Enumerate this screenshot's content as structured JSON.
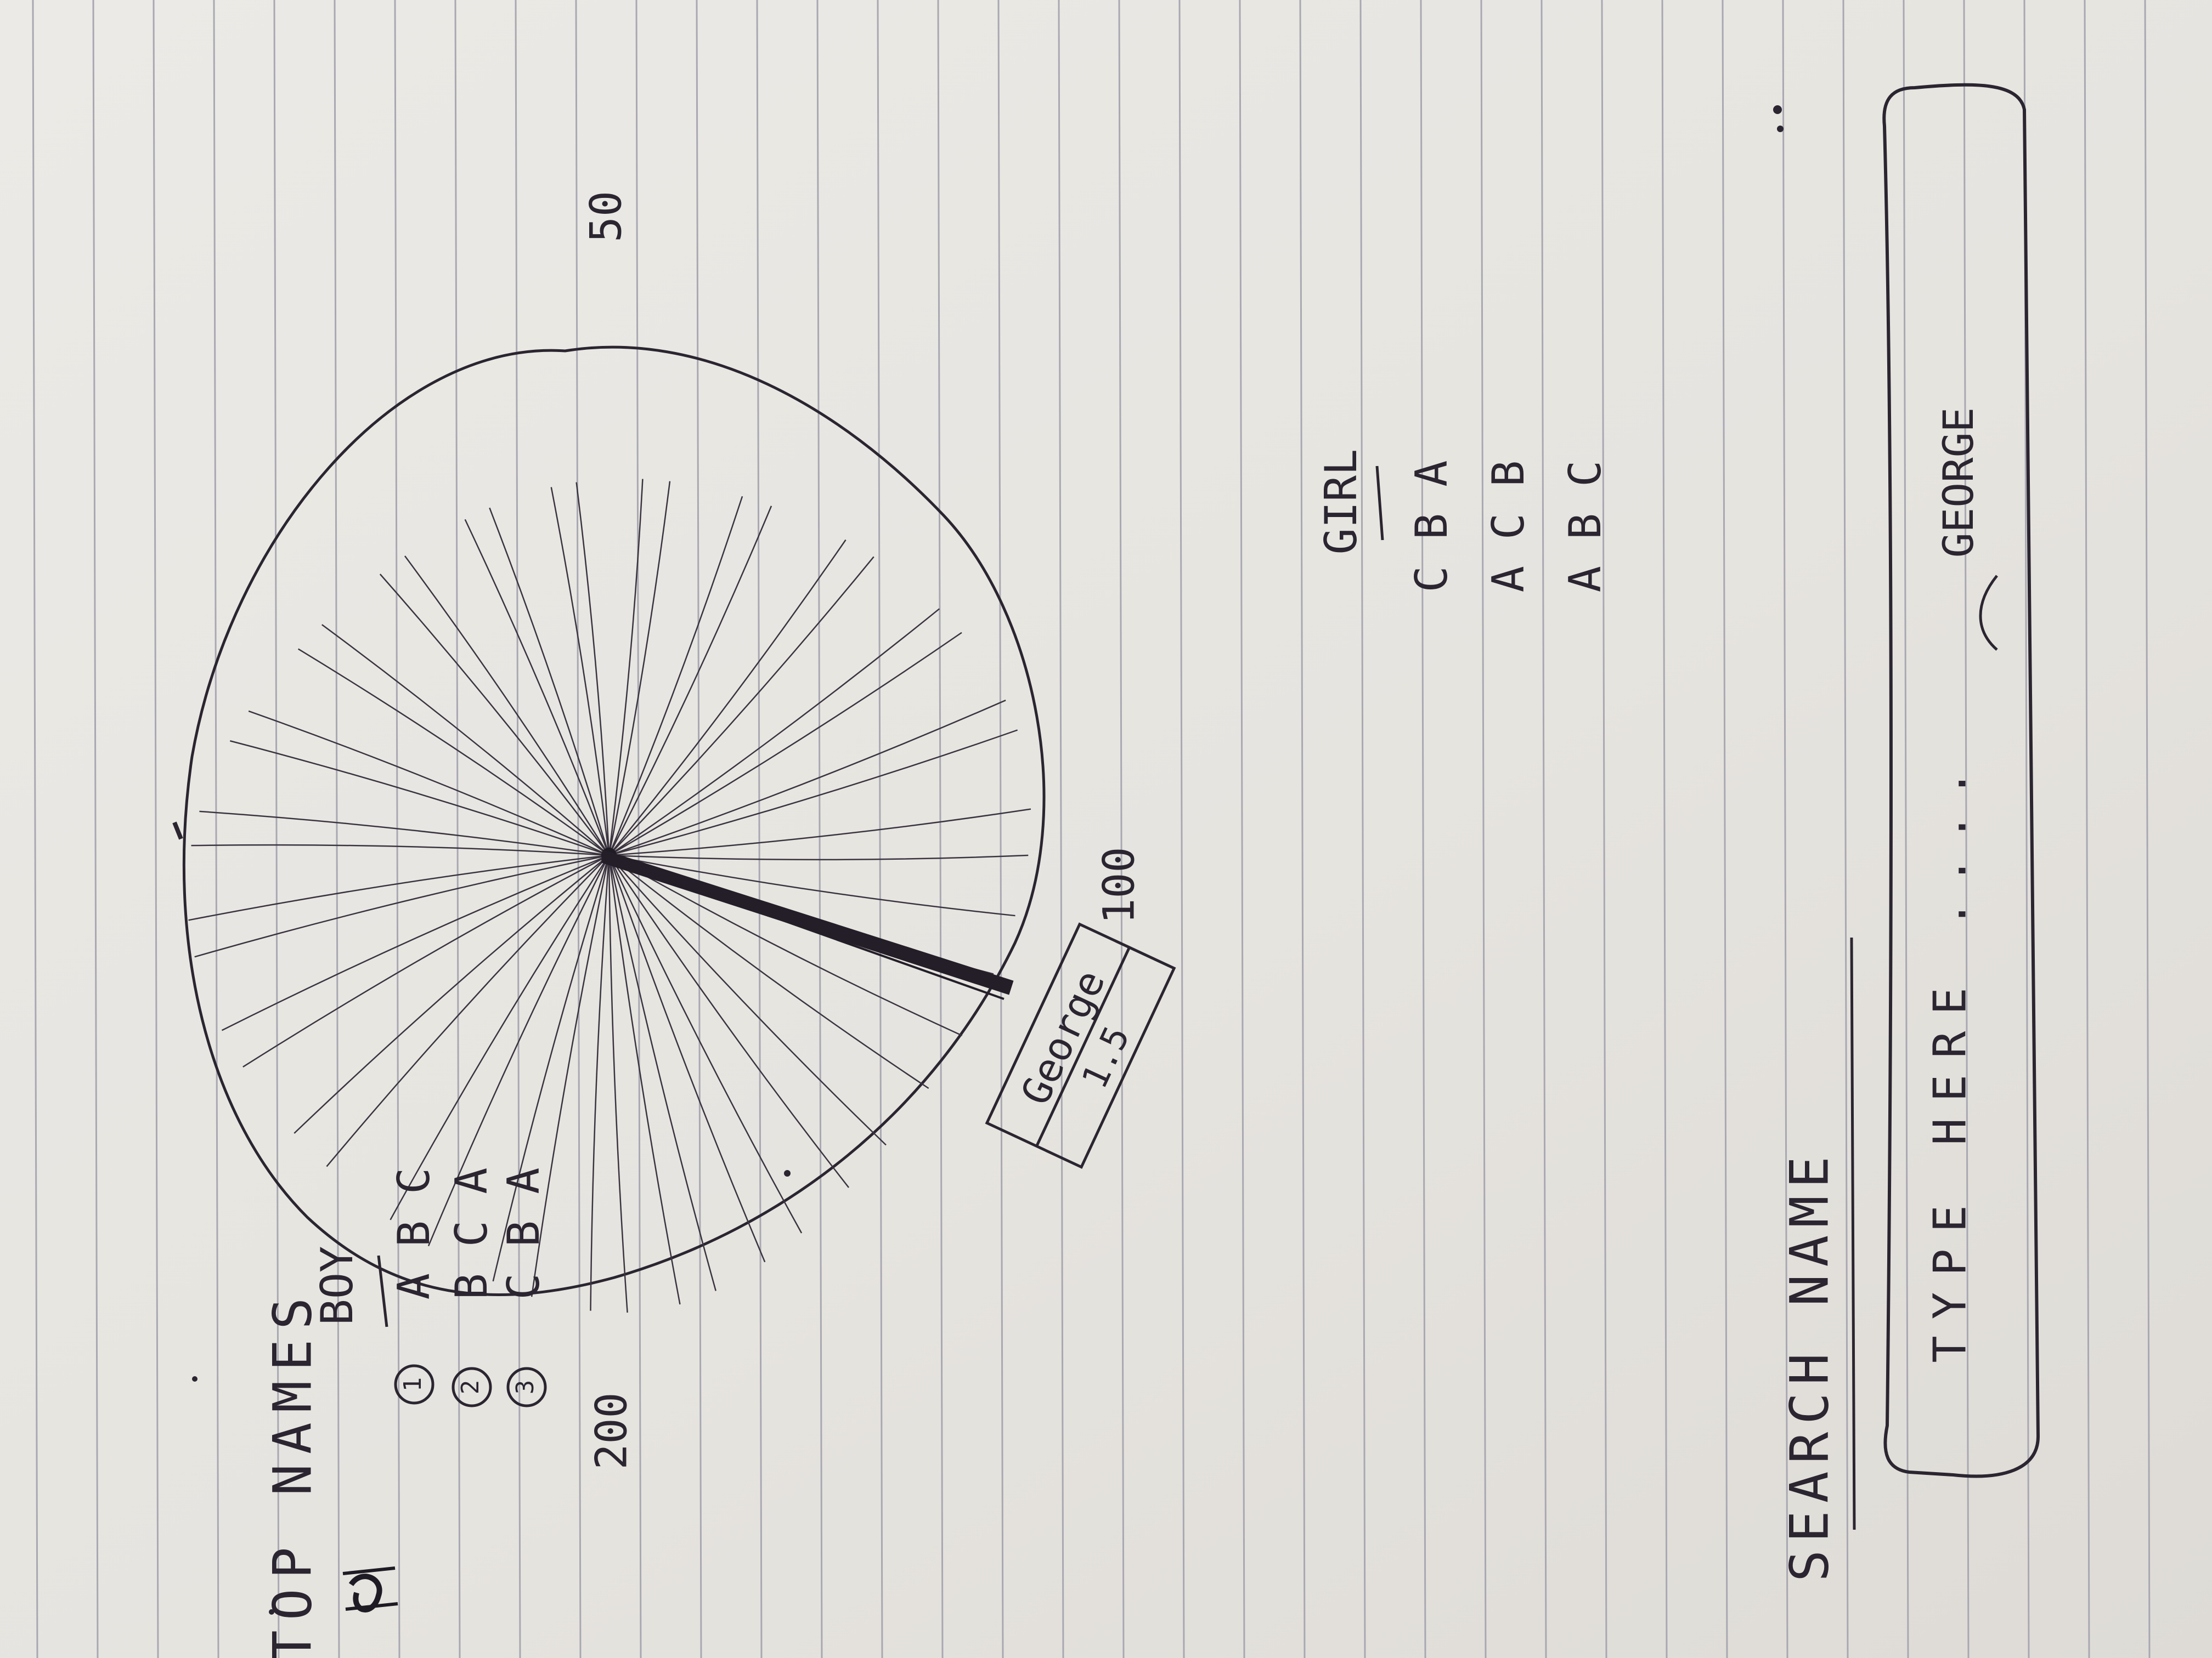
{
  "photo": {
    "description_hidden": false,
    "paper_color": "#e8e6e2",
    "rule_color": "#a9a8b2",
    "ink_color": "#2a2530"
  },
  "dial": {
    "scale_labels": [
      "50",
      "100",
      "200"
    ],
    "pointer_tag": {
      "name": "George",
      "value": "1.5"
    }
  },
  "top_names": {
    "heading": "TOP NAMES",
    "boy_header": "BOY",
    "girl_header": "GIRL",
    "ranks": [
      "1",
      "2",
      "3"
    ],
    "boy_names": [
      "A B C",
      "B C A",
      "C B A"
    ],
    "girl_names": [
      "C B A",
      "A C B",
      "A B C"
    ]
  },
  "search": {
    "label": "SEARCH NAME",
    "placeholder": "TYPE HERE ....",
    "example_value": "GEORGE"
  }
}
